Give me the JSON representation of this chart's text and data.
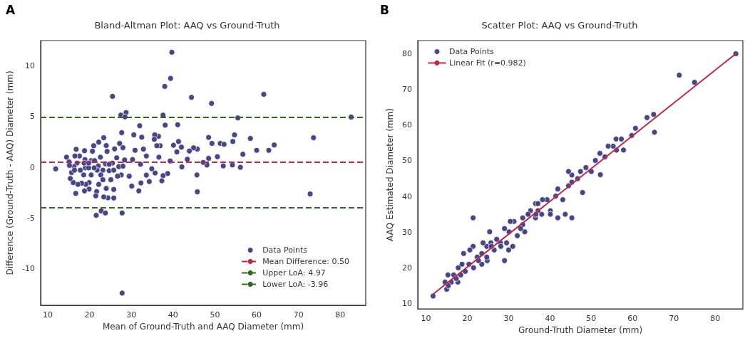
{
  "chart_data": [
    {
      "type": "scatter",
      "title": "Bland-Altman Plot: AAQ vs Ground-Truth",
      "xlabel": "Mean of Ground-Truth and AAQ Diameter (mm)",
      "ylabel": "Difference (Ground-Truth - AAQ) Diameter (mm)",
      "annotations": [
        "A"
      ],
      "xlim": [
        8.3,
        86.1
      ],
      "ylim": [
        -13.6,
        12.5
      ],
      "xticks": [
        10,
        20,
        30,
        40,
        50,
        60,
        70,
        80
      ],
      "yticks": [
        -10,
        -5,
        0,
        5,
        10
      ],
      "grid": false,
      "legend": "bottom right",
      "marker": "circle",
      "series": [
        {
          "name": "Data Points",
          "color": "#3d3d80",
          "x": [
            11.9,
            39.7,
            39.4,
            38.0,
            25.5,
            44.4,
            49.2,
            61.7,
            82.6,
            55.5,
            27.5,
            28.75,
            28.5,
            37.6,
            32.0,
            38.1,
            41.1,
            73.6,
            72.8,
            27.8,
            21.6,
            22.8,
            23.8,
            27.8,
            45.8,
            45.7,
            58.5,
            60.0,
            62.9,
            64.2,
            56.7,
            56.1,
            54.7,
            54.3,
            54.2,
            52.0,
            51.3,
            52.2,
            50.6,
            48.5,
            49.3,
            48.5,
            48.1,
            47.2,
            45.8,
            44.9,
            43.9,
            43.4,
            42.1,
            42.0,
            41.3,
            40.1,
            40.9,
            39.3,
            38.7,
            37.6,
            37.3,
            36.6,
            36.9,
            36.5,
            35.6,
            36.1,
            35.5,
            35.7,
            34.9,
            34.3,
            33.6,
            33.6,
            32.9,
            32.5,
            32.2,
            32.3,
            31.8,
            30.6,
            30.9,
            30.1,
            29.5,
            30.3,
            28.4,
            28.0,
            27.7,
            27.2,
            27.0,
            28.0,
            27.6,
            25.8,
            25.8,
            26.0,
            25.5,
            26.5,
            26.7,
            25.1,
            24.4,
            23.4,
            24.0,
            23.4,
            22.2,
            21.0,
            20.7,
            24.0,
            24.2,
            23.8,
            24.7,
            23.2,
            22.1,
            21.8,
            22.7,
            22.2,
            21.7,
            21.5,
            21.1,
            20.4,
            19.9,
            19.9,
            18.8,
            19.1,
            18.9,
            18.8,
            18.1,
            18.6,
            19.0,
            17.8,
            17.2,
            16.7,
            16.1,
            16.8,
            17.6,
            16.5,
            17.0,
            16.3,
            15.7,
            15.4,
            15.1,
            14.5,
            15.2,
            16.4,
            19.8,
            20.4,
            18.7,
            19.8,
            21.2,
            22.6,
            24.7,
            25.8,
            23.2
          ],
          "values": [
            -0.15,
            11.35,
            8.77,
            7.98,
            7.0,
            6.9,
            6.3,
            7.2,
            4.96,
            4.87,
            5.15,
            5.4,
            4.98,
            5.15,
            4.1,
            4.16,
            4.2,
            2.92,
            -2.62,
            -12.4,
            -4.73,
            -4.3,
            -4.5,
            -4.5,
            -2.41,
            -0.75,
            2.85,
            1.68,
            1.68,
            2.2,
            1.29,
            0.0,
            3.2,
            2.55,
            0.23,
            0.14,
            2.36,
            2.27,
            1.05,
            2.95,
            2.36,
            0.89,
            0.23,
            0.49,
            1.8,
            1.92,
            1.61,
            0.8,
            0.05,
            1.99,
            2.55,
            2.18,
            1.52,
            0.63,
            -0.61,
            -0.82,
            -1.33,
            1.0,
            2.13,
            3.06,
            3.2,
            2.13,
            2.76,
            -0.56,
            -0.14,
            -1.4,
            -0.77,
            1.12,
            1.8,
            2.97,
            0.3,
            -1.54,
            -2.32,
            3.2,
            1.68,
            -1.85,
            -0.87,
            0.77,
            0.73,
            1.94,
            3.42,
            2.36,
            0.07,
            0.12,
            -0.75,
            -3.02,
            -2.18,
            1.82,
            0.42,
            0.94,
            -0.87,
            -1.22,
            -3.0,
            -2.92,
            -2.08,
            2.92,
            2.48,
            2.13,
            1.59,
            2.15,
            1.57,
            0.35,
            -0.33,
            -0.28,
            0.14,
            -0.28,
            -0.75,
            -1.68,
            -2.39,
            -2.81,
            -0.05,
            -0.75,
            -1.5,
            -2.15,
            -2.32,
            -1.68,
            0.77,
            1.64,
            -1.57,
            -0.75,
            -0.05,
            -0.28,
            -1.68,
            -2.57,
            -1.5,
            1.78,
            1.12,
            1.12,
            0.42,
            0.07,
            -0.51,
            -1.1,
            0.54,
            1.0,
            0.19,
            -0.28,
            -0.05,
            0.66,
            0.42,
            0.42,
            0.66,
            1.0,
            0.3,
            -0.28,
            -1.22
          ]
        }
      ],
      "ref_lines": [
        {
          "axis": "y",
          "value": 0.5,
          "label": "Mean Difference: 0.50",
          "color": "#c0284a",
          "line_style": "dashed"
        },
        {
          "axis": "y",
          "value": 4.97,
          "label": "Upper LoA: 4.97",
          "color": "#2e6a1a",
          "line_style": "dashed"
        },
        {
          "axis": "y",
          "value": -3.96,
          "label": "Lower LoA: -3.96",
          "color": "#2e6a1a",
          "line_style": "dashed"
        }
      ]
    },
    {
      "type": "scatter",
      "title": "Scatter Plot: AAQ vs Ground-Truth",
      "xlabel": "Ground-Truth Diameter (mm)",
      "ylabel": "AAQ Estimated Diameter (mm)",
      "annotations": [
        "B"
      ],
      "xlim": [
        8.0,
        86.7
      ],
      "ylim": [
        8.5,
        83.7
      ],
      "xticks": [
        10,
        20,
        30,
        40,
        50,
        60,
        70,
        80
      ],
      "yticks": [
        10,
        20,
        30,
        40,
        50,
        60,
        70,
        80
      ],
      "grid": false,
      "legend": "top left",
      "marker": "circle",
      "series": [
        {
          "name": "Data Points",
          "color": "#3d3d80",
          "x": [
            11.7,
            85.0,
            71.3,
            75.0,
            65.1,
            63.5,
            65.3,
            60.7,
            59.8,
            57.8,
            56.0,
            57.3,
            56.1,
            55.3,
            54.1,
            53.3,
            52.1,
            52.2,
            51.0,
            50.0,
            48.7,
            47.4,
            47.9,
            46.7,
            45.3,
            44.5,
            45.3,
            44.5,
            45.3,
            43.7,
            41.9,
            41.9,
            43.1,
            41.4,
            40.1,
            40.1,
            39.3,
            38.2,
            38.0,
            36.5,
            37.1,
            36.5,
            37.1,
            35.3,
            33.4,
            33.9,
            33.4,
            32.1,
            31.3,
            30.4,
            31.0,
            30.0,
            29.0,
            29.0,
            28.0,
            28.1,
            27.1,
            26.5,
            25.4,
            24.7,
            24.8,
            23.5,
            23.8,
            21.4,
            21.4,
            21.5,
            20.6,
            19.1,
            19.5,
            18.7,
            17.8,
            17.7,
            16.7,
            16.1,
            15.3,
            15.0,
            15.4,
            14.6,
            17.3,
            18.4,
            20.4,
            22.4,
            23.5,
            24.7,
            25.7,
            22.7,
            25.8,
            29.5,
            30.1,
            32.9,
            34.7,
            36.6
          ],
          "values": [
            12.1,
            80.0,
            74.0,
            72.0,
            63.0,
            62.1,
            58.0,
            59.1,
            57.1,
            53.0,
            56.1,
            56.1,
            53.0,
            54.1,
            54.1,
            51.1,
            52.1,
            46.1,
            50.1,
            47.0,
            48.1,
            47.0,
            41.1,
            45.0,
            46.0,
            47.0,
            44.0,
            43.0,
            34.0,
            35.0,
            34.0,
            42.1,
            39.1,
            40.1,
            36.0,
            35.0,
            39.1,
            39.1,
            35.0,
            38.0,
            38.0,
            34.0,
            36.0,
            36.0,
            34.0,
            30.1,
            32.1,
            29.0,
            33.0,
            33.0,
            26.0,
            25.0,
            31.0,
            22.0,
            27.0,
            26.0,
            28.0,
            25.0,
            30.1,
            26.0,
            22.0,
            21.0,
            27.0,
            34.0,
            26.0,
            20.0,
            25.0,
            24.0,
            19.0,
            21.0,
            20.0,
            16.0,
            18.0,
            16.0,
            18.0,
            14.0,
            15.0,
            16.0,
            17.0,
            18.0,
            21.0,
            23.0,
            24.0,
            23.0,
            27.0,
            22.0,
            26.0,
            27.0,
            30.1,
            31.0,
            35.0,
            35.0
          ]
        },
        {
          "name": "Linear Fit (r=0.982)",
          "type": "line",
          "color": "#c0284a",
          "marker": "none",
          "line_style": "solid",
          "x": [
            11.7,
            85.0
          ],
          "values": [
            12.6,
            80.0
          ]
        }
      ]
    }
  ]
}
